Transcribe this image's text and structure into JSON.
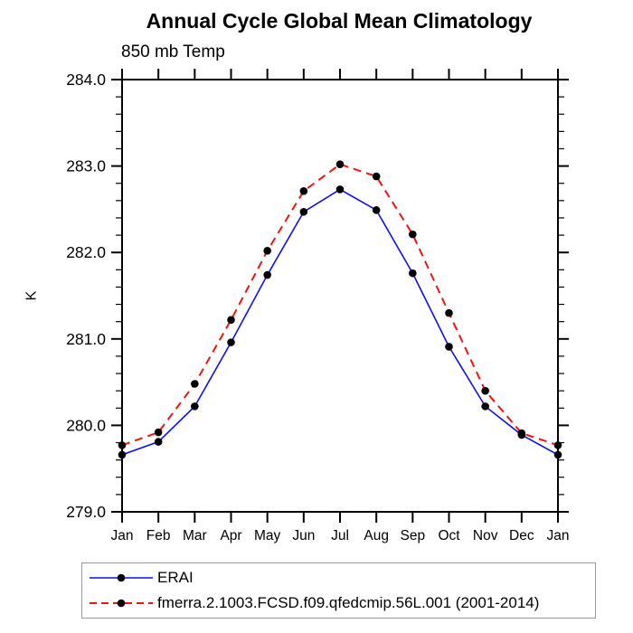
{
  "chart_data": {
    "type": "line",
    "title": "Annual Cycle Global Mean Climatology",
    "subtitle": "850 mb Temp",
    "ylabel": "K",
    "xlabel": "",
    "ylim": [
      279.0,
      284.0
    ],
    "ytick_step": 1.0,
    "ytick_minor_step": 0.2,
    "grid": false,
    "legend_position": "bottom-left",
    "categories": [
      "Jan",
      "Feb",
      "Mar",
      "Apr",
      "May",
      "Jun",
      "Jul",
      "Aug",
      "Sep",
      "Oct",
      "Nov",
      "Dec",
      "Jan"
    ],
    "series": [
      {
        "name": "ERAI",
        "color": "#1010e8",
        "style": "solid",
        "marker": "black-dot",
        "marker_color": "#000000",
        "values": [
          279.66,
          279.81,
          280.22,
          280.96,
          281.74,
          282.47,
          282.73,
          282.49,
          281.76,
          280.91,
          280.22,
          279.89,
          279.66
        ]
      },
      {
        "name": "fmerra.2.1003.FCSD.f09.qfedcmip.56L.001 (2001-2014)",
        "color": "#ef1410",
        "style": "dashed",
        "marker": "black-dot",
        "marker_color": "#000000",
        "values": [
          279.77,
          279.92,
          280.48,
          281.22,
          282.02,
          282.71,
          283.02,
          282.88,
          282.21,
          281.3,
          280.4,
          279.91,
          279.77
        ]
      }
    ]
  }
}
